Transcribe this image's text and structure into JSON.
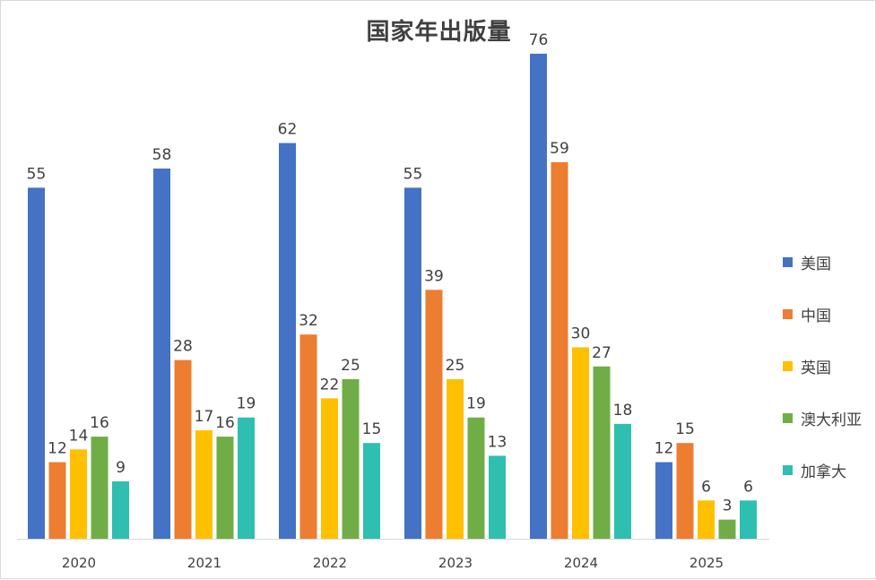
{
  "chart_data": {
    "type": "bar",
    "title": "国家年出版量",
    "xlabel": "",
    "ylabel": "",
    "ylim": [
      0,
      80
    ],
    "grid": false,
    "legend_position": "right",
    "categories": [
      "2020",
      "2021",
      "2022",
      "2023",
      "2024",
      "2025"
    ],
    "series": [
      {
        "name": "美国",
        "color": "#4472C4",
        "values": [
          55,
          58,
          62,
          55,
          76,
          12
        ]
      },
      {
        "name": "中国",
        "color": "#ED7D31",
        "values": [
          12,
          28,
          32,
          39,
          59,
          15
        ]
      },
      {
        "name": "英国",
        "color": "#FFC000",
        "values": [
          14,
          17,
          22,
          25,
          30,
          6
        ]
      },
      {
        "name": "澳大利亚",
        "color": "#70AD47",
        "values": [
          16,
          16,
          25,
          19,
          27,
          3
        ]
      },
      {
        "name": "加拿大",
        "color": "#2FBFB0",
        "values": [
          9,
          19,
          15,
          13,
          18,
          6
        ]
      }
    ]
  }
}
